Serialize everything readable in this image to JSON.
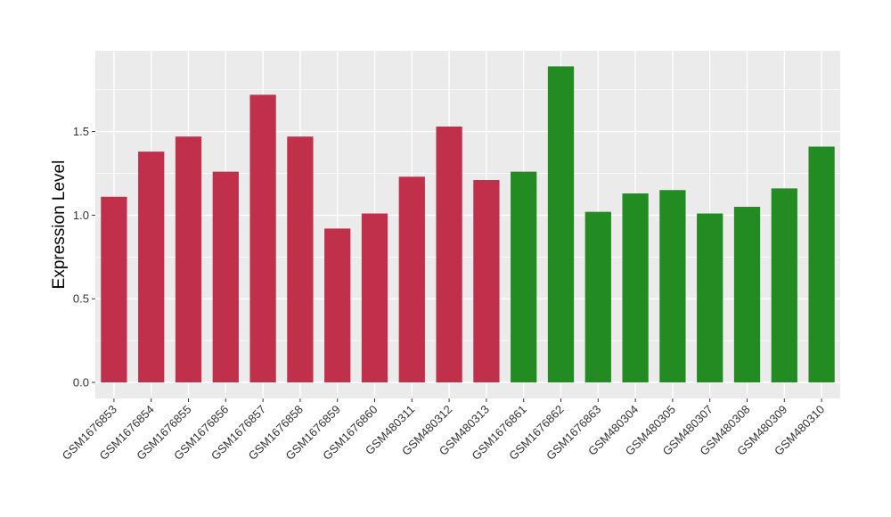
{
  "chart_data": {
    "type": "bar",
    "title": "",
    "xlabel": "",
    "ylabel": "Expression Level",
    "ylim": [
      0,
      1.95
    ],
    "yticks": [
      0.0,
      0.5,
      1.0,
      1.5
    ],
    "ytick_labels": [
      "0.0",
      "0.5",
      "1.0",
      "1.5"
    ],
    "grid": true,
    "legend": "none",
    "categories": [
      "GSM1676853",
      "GSM1676854",
      "GSM1676855",
      "GSM1676856",
      "GSM1676857",
      "GSM1676858",
      "GSM1676859",
      "GSM1676860",
      "GSM480311",
      "GSM480312",
      "GSM480313",
      "GSM1676861",
      "GSM1676862",
      "GSM1676863",
      "GSM480304",
      "GSM480305",
      "GSM480307",
      "GSM480308",
      "GSM480309",
      "GSM480310"
    ],
    "values": [
      1.11,
      1.38,
      1.47,
      1.26,
      1.72,
      1.47,
      0.92,
      1.01,
      1.23,
      1.53,
      1.21,
      1.26,
      1.89,
      1.02,
      1.13,
      1.15,
      1.01,
      1.05,
      1.16,
      1.41
    ],
    "groups": [
      "red",
      "red",
      "red",
      "red",
      "red",
      "red",
      "red",
      "red",
      "red",
      "red",
      "red",
      "green",
      "green",
      "green",
      "green",
      "green",
      "green",
      "green",
      "green",
      "green"
    ],
    "colors": {
      "red": "#C0304A",
      "green": "#228B22"
    },
    "panel_background": "#EBEBEB",
    "grid_color": "#FFFFFF"
  }
}
